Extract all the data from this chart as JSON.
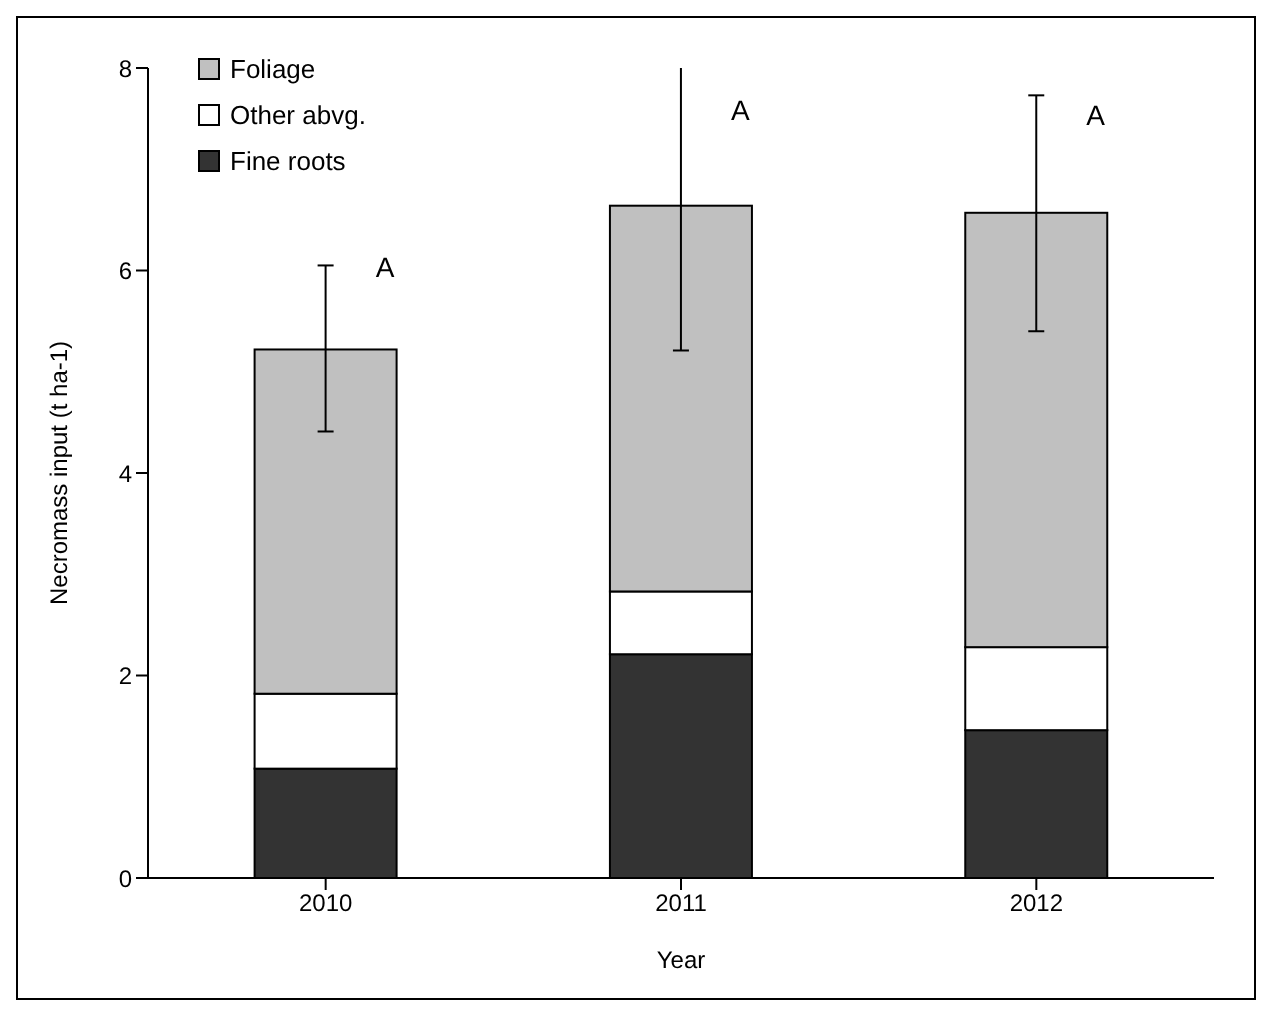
{
  "chart_data": {
    "type": "bar",
    "stacked": true,
    "xlabel": "Year",
    "ylabel": "Necromass input (t ha-1)",
    "categories": [
      "2010",
      "2011",
      "2012"
    ],
    "series": [
      {
        "name": "Fine roots",
        "color": "#333333",
        "values": [
          1.08,
          2.21,
          1.46
        ]
      },
      {
        "name": "Other abvg.",
        "color": "#ffffff",
        "values": [
          0.74,
          0.62,
          0.82
        ]
      },
      {
        "name": "Foliage",
        "color": "#c0c0c0",
        "values": [
          3.4,
          3.81,
          4.29
        ],
        "errors": [
          [
            4.41,
            6.05
          ],
          [
            5.21,
            8.04
          ],
          [
            5.4,
            7.73
          ]
        ]
      }
    ],
    "ylim": [
      0,
      8
    ],
    "yticks": [
      0,
      2,
      4,
      6,
      8
    ],
    "grid": false,
    "legend": "top left",
    "annotations": [
      {
        "text": "A",
        "x": "2010",
        "y": 6.03
      },
      {
        "text": "A",
        "x": "2011",
        "y": 7.58
      },
      {
        "text": "A",
        "x": "2012",
        "y": 7.54
      }
    ]
  }
}
